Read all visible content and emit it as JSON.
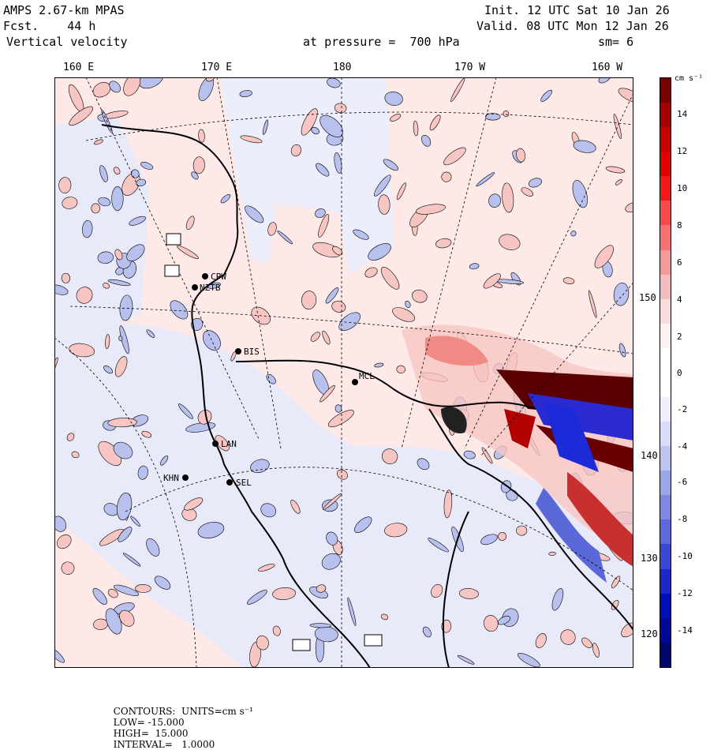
{
  "header": {
    "model": "AMPS 2.67-km MPAS",
    "forecast": "Fcst.    44 h",
    "field": "Vertical velocity",
    "init": "Init. 12 UTC Sat 10 Jan 26",
    "valid": "Valid. 08 UTC Mon 12 Jan 26",
    "level": "at pressure =  700 hPa",
    "smoothing": "sm= 6"
  },
  "longitude_labels": [
    "160 E",
    "170 E",
    "180",
    "170 W",
    "160 W"
  ],
  "latitude_labels": [
    "150 W",
    "140 W",
    "130 W",
    "120 W"
  ],
  "stations": [
    "CPW",
    "NZTB",
    "BIS",
    "LAN",
    "KHN",
    "SEL",
    "MCL"
  ],
  "colorbar": {
    "units_label": "cm s⁻¹",
    "ticks": [
      "14",
      "12",
      "10",
      "8",
      "6",
      "4",
      "2",
      "0",
      "-2",
      "-4",
      "-6",
      "-8",
      "-10",
      "-12",
      "-14"
    ],
    "colors": [
      "#7a0000",
      "#a50000",
      "#c80000",
      "#e00000",
      "#f21818",
      "#f84848",
      "#f87070",
      "#f49a9a",
      "#f4bcbc",
      "#f8dcdc",
      "#fdf0f0",
      "#ffffff",
      "#ffffff",
      "#eeeeff",
      "#d8dcf8",
      "#bcc4f0",
      "#9ca6ea",
      "#7c88e4",
      "#5c68dc",
      "#3a48d6",
      "#1c28cc",
      "#0010b8",
      "#000a98",
      "#00066e"
    ],
    "positive_color": "#f7c6c2",
    "negative_color": "#b8c0ee",
    "background_positive": "#fde9e7",
    "background_negative": "#e8eafa",
    "coast_color": "#000000"
  },
  "footer": {
    "contours": "CONTOURS:  UNITS=cm s⁻¹",
    "low": "LOW= -15.000",
    "high": "HIGH=  15.000",
    "interval": "INTERVAL=   1.0000"
  }
}
